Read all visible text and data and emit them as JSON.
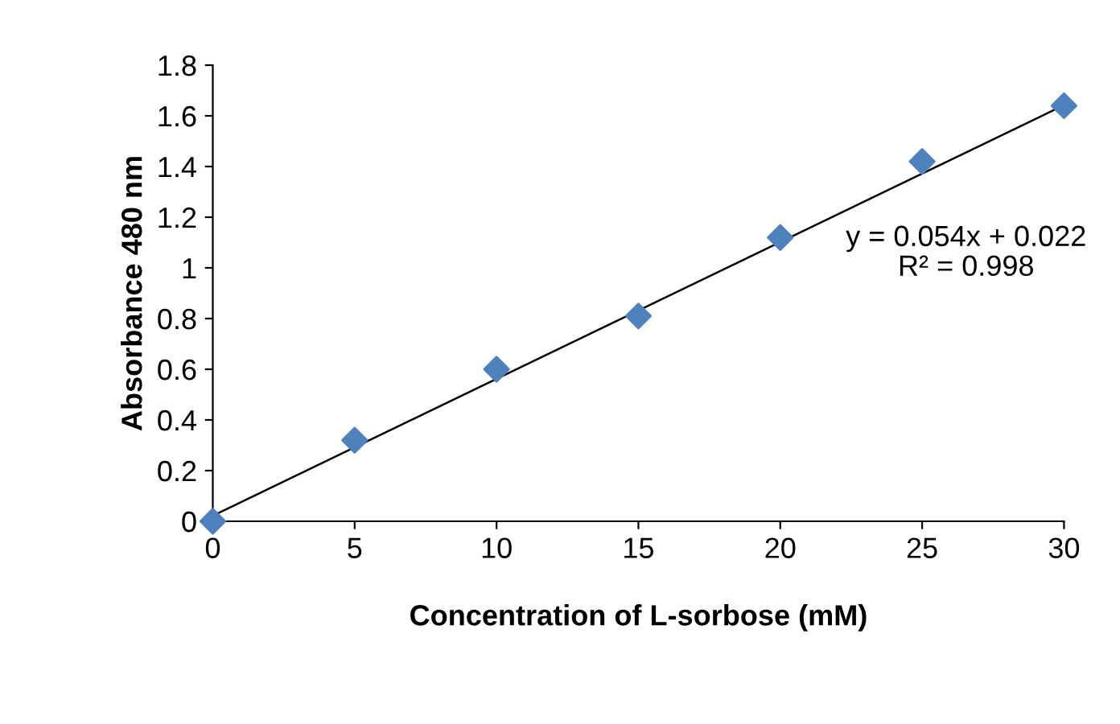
{
  "chart_data": {
    "type": "scatter",
    "xlabel": "Concentration of L-sorbose (mM)",
    "ylabel": "Absorbance 480 nm",
    "series": [
      {
        "color": "#4f81bd",
        "marker": "diamond",
        "x": [
          0,
          5,
          10,
          15,
          20,
          25,
          30
        ],
        "values": [
          0,
          0.32,
          0.6,
          0.81,
          1.12,
          1.42,
          1.64
        ]
      },
      {
        "type": "line",
        "color": "#000000",
        "marker": "none",
        "line_style": "solid",
        "x": [
          0,
          30
        ],
        "values": [
          0.022,
          1.642
        ]
      }
    ],
    "xlim": [
      0,
      30
    ],
    "xticks": [
      0,
      5,
      10,
      15,
      20,
      25,
      30
    ],
    "ylim": [
      0,
      1.8
    ],
    "yticks": [
      0,
      0.2,
      0.4,
      0.6,
      0.8,
      1,
      1.2,
      1.4,
      1.6,
      1.8
    ],
    "grid": false,
    "legend": false,
    "annotations": [
      "y = 0.054x + 0.022",
      "R² = 0.998"
    ]
  }
}
